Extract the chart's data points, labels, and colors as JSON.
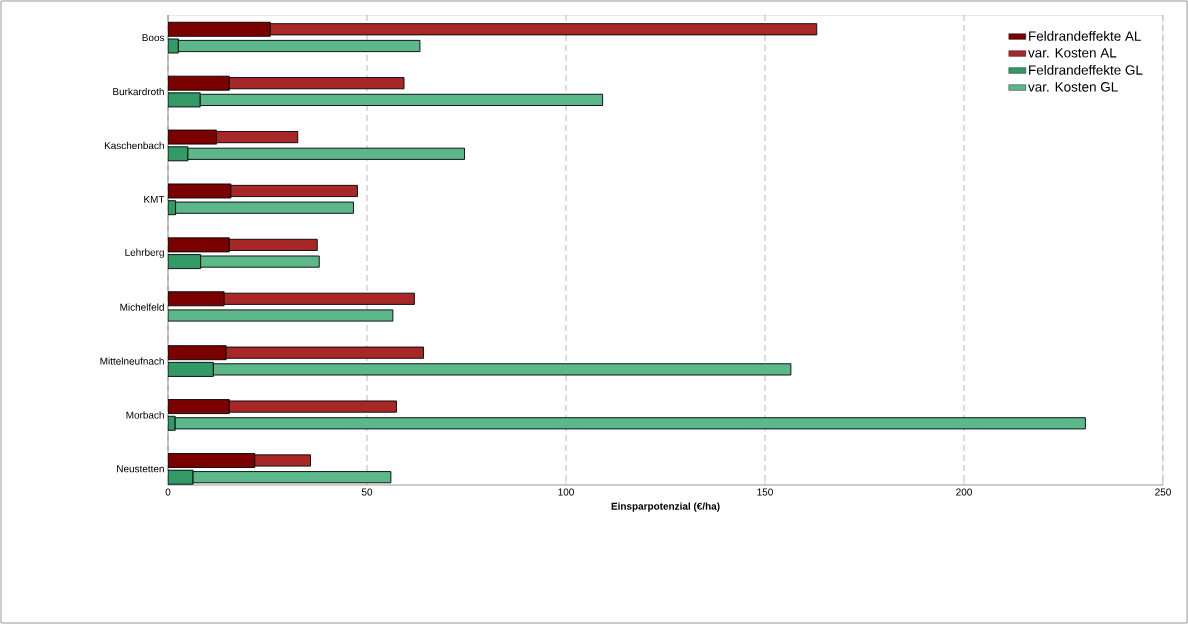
{
  "chart_data": {
    "type": "bar",
    "orientation": "horizontal",
    "xlabel": "Einsparpotenzial (€/ha)",
    "categories": [
      "Boos",
      "Burkardroth",
      "Kaschenbach",
      "KMT",
      "Lehrberg",
      "Michelfeld",
      "Mittelneufnach",
      "Morbach",
      "Neustetten"
    ],
    "series": [
      {
        "name": "Feldrandeffekte AL",
        "color": "#7b0000",
        "values": [
          25.7,
          15.4,
          12.2,
          15.8,
          15.4,
          14.1,
          14.6,
          15.4,
          21.8
        ]
      },
      {
        "name": "var. Kosten AL",
        "color": "#a82828",
        "base": [
          25.7,
          15.4,
          12.2,
          15.8,
          15.4,
          14.1,
          14.6,
          15.4,
          21.8
        ],
        "values": [
          137.3,
          43.9,
          20.4,
          31.8,
          22.1,
          47.8,
          49.6,
          42.0,
          14.0
        ]
      },
      {
        "name": "Feldrandeffekte GL",
        "color": "#339966",
        "values": [
          2.6,
          8.1,
          5.0,
          1.9,
          8.2,
          0,
          11.4,
          1.8,
          6.3
        ]
      },
      {
        "name": "var. Kosten GL",
        "color": "#5cb88a",
        "base": [
          2.6,
          8.1,
          5.0,
          1.9,
          8.2,
          0,
          11.4,
          1.8,
          6.3
        ],
        "values": [
          60.7,
          101.1,
          69.5,
          44.7,
          29.8,
          56.5,
          145.1,
          228.7,
          49.7
        ]
      }
    ],
    "xlim": [
      0,
      250
    ],
    "xticks": [
      0,
      50,
      100,
      150,
      200,
      250
    ],
    "grid": "x",
    "legend": "top right"
  }
}
